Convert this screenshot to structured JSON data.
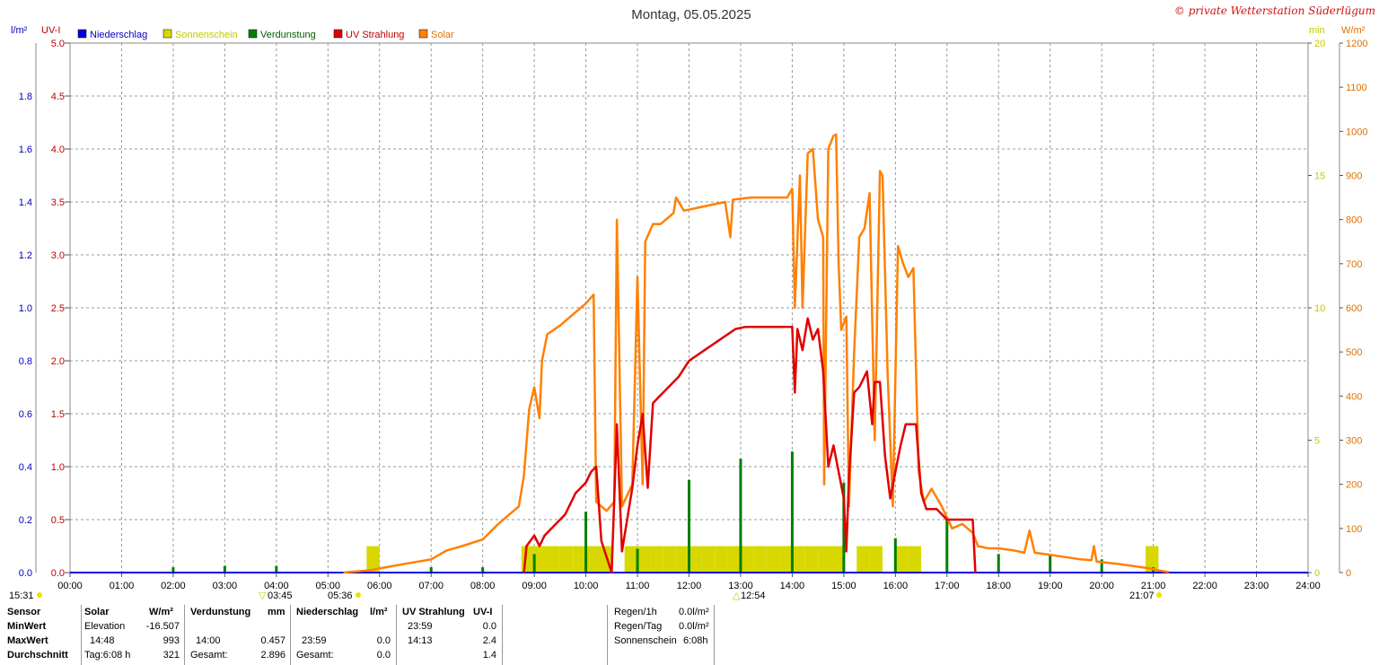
{
  "header": {
    "title": "Montag, 05.05.2025",
    "copyright": "© private Wetterstation Süderlügum",
    "left_unit_1": "l/m²",
    "left_unit_2": "UV-I",
    "right_unit_1": "min",
    "right_unit_2": "W/m²"
  },
  "legend": [
    {
      "label": "Niederschlag",
      "color": "#0000e0",
      "text_color": "#0000c0"
    },
    {
      "label": "Sonnenschein",
      "color": "#d8d800",
      "text_color": "#c8c800"
    },
    {
      "label": "Verdunstung",
      "color": "#008000",
      "text_color": "#006000"
    },
    {
      "label": "UV Strahlung",
      "color": "#e00000",
      "text_color": "#c00000"
    },
    {
      "label": "Solar",
      "color": "#ff8000",
      "text_color": "#e07000"
    }
  ],
  "chart_data": {
    "type": "line",
    "x_ticks": [
      "00:00",
      "01:00",
      "02:00",
      "03:00",
      "04:00",
      "05:00",
      "06:00",
      "07:00",
      "08:00",
      "09:00",
      "10:00",
      "11:00",
      "12:00",
      "13:00",
      "14:00",
      "15:00",
      "16:00",
      "17:00",
      "18:00",
      "19:00",
      "20:00",
      "21:00",
      "22:00",
      "23:00",
      "24:00"
    ],
    "axes": {
      "precip": {
        "label": "l/m²",
        "range": [
          0,
          2.0
        ],
        "ticks": [
          "0.0",
          "0.2",
          "0.4",
          "0.6",
          "0.8",
          "1.0",
          "1.2",
          "1.4",
          "1.6",
          "1.8"
        ]
      },
      "uv": {
        "label": "UV-I",
        "range": [
          0,
          5.0
        ],
        "ticks": [
          "0.0",
          "0.5",
          "1.0",
          "1.5",
          "2.0",
          "2.5",
          "3.0",
          "3.5",
          "4.0",
          "4.5",
          "5.0"
        ]
      },
      "sunshine": {
        "label": "min",
        "range": [
          0,
          20
        ],
        "ticks": [
          "0",
          "5",
          "10",
          "15",
          "20"
        ]
      },
      "solar": {
        "label": "W/m²",
        "range": [
          0,
          1200
        ],
        "ticks": [
          "0",
          "100",
          "200",
          "300",
          "400",
          "500",
          "600",
          "700",
          "800",
          "900",
          "1000",
          "1100",
          "1200"
        ]
      }
    },
    "series": [
      {
        "name": "Solar",
        "axis": "solar",
        "color": "#ff8000",
        "points": [
          [
            5.3,
            0
          ],
          [
            5.8,
            5
          ],
          [
            6.5,
            20
          ],
          [
            7.0,
            30
          ],
          [
            7.3,
            50
          ],
          [
            7.6,
            60
          ],
          [
            8.0,
            75
          ],
          [
            8.3,
            110
          ],
          [
            8.5,
            130
          ],
          [
            8.7,
            150
          ],
          [
            8.8,
            220
          ],
          [
            8.9,
            370
          ],
          [
            9.0,
            420
          ],
          [
            9.1,
            350
          ],
          [
            9.15,
            480
          ],
          [
            9.25,
            540
          ],
          [
            9.5,
            560
          ],
          [
            9.8,
            590
          ],
          [
            10.0,
            610
          ],
          [
            10.15,
            630
          ],
          [
            10.2,
            160
          ],
          [
            10.4,
            140
          ],
          [
            10.55,
            160
          ],
          [
            10.6,
            800
          ],
          [
            10.7,
            150
          ],
          [
            10.9,
            200
          ],
          [
            11.0,
            670
          ],
          [
            11.1,
            200
          ],
          [
            11.15,
            750
          ],
          [
            11.3,
            790
          ],
          [
            11.45,
            790
          ],
          [
            11.7,
            815
          ],
          [
            11.75,
            850
          ],
          [
            11.9,
            820
          ],
          [
            12.3,
            830
          ],
          [
            12.7,
            840
          ],
          [
            12.8,
            760
          ],
          [
            12.85,
            845
          ],
          [
            13.2,
            850
          ],
          [
            13.6,
            850
          ],
          [
            13.9,
            850
          ],
          [
            14.0,
            870
          ],
          [
            14.05,
            600
          ],
          [
            14.15,
            900
          ],
          [
            14.2,
            600
          ],
          [
            14.3,
            950
          ],
          [
            14.4,
            960
          ],
          [
            14.5,
            800
          ],
          [
            14.6,
            760
          ],
          [
            14.62,
            200
          ],
          [
            14.7,
            960
          ],
          [
            14.8,
            990
          ],
          [
            14.85,
            993
          ],
          [
            14.9,
            700
          ],
          [
            14.95,
            550
          ],
          [
            15.05,
            580
          ],
          [
            15.1,
            150
          ],
          [
            15.2,
            500
          ],
          [
            15.3,
            760
          ],
          [
            15.4,
            780
          ],
          [
            15.5,
            860
          ],
          [
            15.6,
            300
          ],
          [
            15.7,
            910
          ],
          [
            15.75,
            900
          ],
          [
            15.85,
            450
          ],
          [
            15.95,
            150
          ],
          [
            16.05,
            740
          ],
          [
            16.15,
            700
          ],
          [
            16.25,
            670
          ],
          [
            16.35,
            690
          ],
          [
            16.45,
            230
          ],
          [
            16.55,
            160
          ],
          [
            16.7,
            190
          ],
          [
            16.9,
            150
          ],
          [
            17.1,
            100
          ],
          [
            17.3,
            110
          ],
          [
            17.5,
            90
          ],
          [
            17.6,
            60
          ],
          [
            17.8,
            55
          ],
          [
            18.0,
            55
          ],
          [
            18.3,
            50
          ],
          [
            18.5,
            45
          ],
          [
            18.6,
            95
          ],
          [
            18.7,
            45
          ],
          [
            19.0,
            40
          ],
          [
            19.3,
            35
          ],
          [
            19.6,
            30
          ],
          [
            19.8,
            28
          ],
          [
            19.85,
            60
          ],
          [
            19.9,
            25
          ],
          [
            20.3,
            20
          ],
          [
            20.6,
            15
          ],
          [
            20.9,
            10
          ],
          [
            21.1,
            5
          ],
          [
            21.3,
            1
          ]
        ]
      },
      {
        "name": "UV Strahlung",
        "axis": "uv",
        "color": "#e00000",
        "points": [
          [
            8.8,
            0
          ],
          [
            8.85,
            0.25
          ],
          [
            9.0,
            0.35
          ],
          [
            9.1,
            0.25
          ],
          [
            9.2,
            0.35
          ],
          [
            9.4,
            0.45
          ],
          [
            9.6,
            0.55
          ],
          [
            9.8,
            0.75
          ],
          [
            10.0,
            0.85
          ],
          [
            10.1,
            0.95
          ],
          [
            10.2,
            1.0
          ],
          [
            10.3,
            0.3
          ],
          [
            10.5,
            0
          ],
          [
            10.6,
            1.4
          ],
          [
            10.7,
            0.2
          ],
          [
            10.9,
            0.8
          ],
          [
            11.0,
            1.2
          ],
          [
            11.1,
            1.5
          ],
          [
            11.2,
            0.8
          ],
          [
            11.3,
            1.6
          ],
          [
            11.4,
            1.65
          ],
          [
            11.6,
            1.75
          ],
          [
            11.8,
            1.85
          ],
          [
            12.0,
            2.0
          ],
          [
            12.3,
            2.1
          ],
          [
            12.6,
            2.2
          ],
          [
            12.9,
            2.3
          ],
          [
            13.1,
            2.32
          ],
          [
            13.5,
            2.32
          ],
          [
            14.0,
            2.32
          ],
          [
            14.05,
            1.7
          ],
          [
            14.1,
            2.3
          ],
          [
            14.2,
            2.1
          ],
          [
            14.3,
            2.4
          ],
          [
            14.4,
            2.2
          ],
          [
            14.5,
            2.3
          ],
          [
            14.6,
            1.9
          ],
          [
            14.7,
            1.0
          ],
          [
            14.8,
            1.2
          ],
          [
            15.0,
            0.7
          ],
          [
            15.05,
            0.2
          ],
          [
            15.1,
            0.9
          ],
          [
            15.2,
            1.7
          ],
          [
            15.3,
            1.75
          ],
          [
            15.45,
            1.9
          ],
          [
            15.55,
            1.4
          ],
          [
            15.6,
            1.8
          ],
          [
            15.7,
            1.8
          ],
          [
            15.8,
            1.1
          ],
          [
            15.9,
            0.7
          ],
          [
            16.0,
            0.95
          ],
          [
            16.1,
            1.2
          ],
          [
            16.2,
            1.4
          ],
          [
            16.4,
            1.4
          ],
          [
            16.5,
            0.75
          ],
          [
            16.6,
            0.6
          ],
          [
            16.8,
            0.6
          ],
          [
            17.0,
            0.5
          ],
          [
            17.2,
            0.5
          ],
          [
            17.5,
            0.5
          ],
          [
            17.55,
            0
          ]
        ]
      },
      {
        "name": "Sonnenschein",
        "axis": "sunshine",
        "color": "#d8d800",
        "bars": [
          [
            5.75,
            1
          ],
          [
            8.75,
            1
          ],
          [
            9.0,
            1
          ],
          [
            9.25,
            1
          ],
          [
            9.5,
            1
          ],
          [
            9.75,
            1
          ],
          [
            10.0,
            1
          ],
          [
            10.25,
            1
          ],
          [
            10.75,
            1
          ],
          [
            10.9,
            1
          ],
          [
            11.0,
            1
          ],
          [
            11.25,
            1
          ],
          [
            11.5,
            1
          ],
          [
            11.75,
            1
          ],
          [
            12.0,
            1
          ],
          [
            12.25,
            1
          ],
          [
            12.5,
            1
          ],
          [
            12.75,
            1
          ],
          [
            13.0,
            1
          ],
          [
            13.25,
            1
          ],
          [
            13.5,
            1
          ],
          [
            13.75,
            1
          ],
          [
            14.0,
            1
          ],
          [
            14.25,
            1
          ],
          [
            14.5,
            1
          ],
          [
            14.75,
            1
          ],
          [
            15.25,
            1
          ],
          [
            15.5,
            1
          ],
          [
            16.0,
            1
          ],
          [
            16.25,
            1
          ],
          [
            20.85,
            1
          ]
        ]
      },
      {
        "name": "Verdunstung",
        "axis": "precip",
        "color": "#008000",
        "bars": [
          [
            2.0,
            0.02
          ],
          [
            3.0,
            0.025
          ],
          [
            4.0,
            0.025
          ],
          [
            7.0,
            0.02
          ],
          [
            8.0,
            0.02
          ],
          [
            9.0,
            0.07
          ],
          [
            10.0,
            0.23
          ],
          [
            11.0,
            0.09
          ],
          [
            12.0,
            0.35
          ],
          [
            13.0,
            0.43
          ],
          [
            14.0,
            0.457
          ],
          [
            15.0,
            0.34
          ],
          [
            16.0,
            0.13
          ],
          [
            17.0,
            0.2
          ],
          [
            18.0,
            0.07
          ],
          [
            19.0,
            0.07
          ],
          [
            20.0,
            0.05
          ],
          [
            21.0,
            0.02
          ]
        ]
      },
      {
        "name": "Niederschlag",
        "axis": "precip",
        "color": "#0000e0",
        "points": [
          [
            0,
            0
          ],
          [
            24,
            0
          ]
        ]
      }
    ],
    "annotations": {
      "sunrise": "05:36",
      "sunset": "21:07",
      "moonrise": "15:31",
      "min_marker": "03:45",
      "max_marker": "12:54"
    },
    "grid": true
  },
  "table": {
    "col1": {
      "header": "Sensor",
      "rows": [
        "MinWert",
        "MaxWert",
        "Durchschnitt"
      ]
    },
    "solar": {
      "header": "Solar",
      "unit": "W/m²",
      "min_label": "Elevation",
      "min_value": "-16.507",
      "max_time": "14:48",
      "max_value": "993",
      "avg_label": "Tag:6:08 h",
      "avg_value": "321"
    },
    "verdunstung": {
      "header": "Verdunstung",
      "unit": "mm",
      "max_time": "14:00",
      "max_value": "0.457",
      "total_label": "Gesamt:",
      "total_value": "2.896"
    },
    "niederschlag": {
      "header": "Niederschlag",
      "unit": "l/m²",
      "max_time": "23:59",
      "max_value": "0.0",
      "total_label": "Gesamt:",
      "total_value": "0.0"
    },
    "uv": {
      "header": "UV Strahlung",
      "unit": "UV-I",
      "min_time": "23:59",
      "min_value": "0.0",
      "max_time": "14:13",
      "max_value": "2.4",
      "avg_value": "1.4"
    },
    "rain": {
      "r1_label": "Regen/1h",
      "r1_value": "0.0l/m²",
      "r2_label": "Regen/Tag",
      "r2_value": "0.0l/m²",
      "r3_label": "Sonnenschein",
      "r3_value": "6:08h"
    }
  }
}
